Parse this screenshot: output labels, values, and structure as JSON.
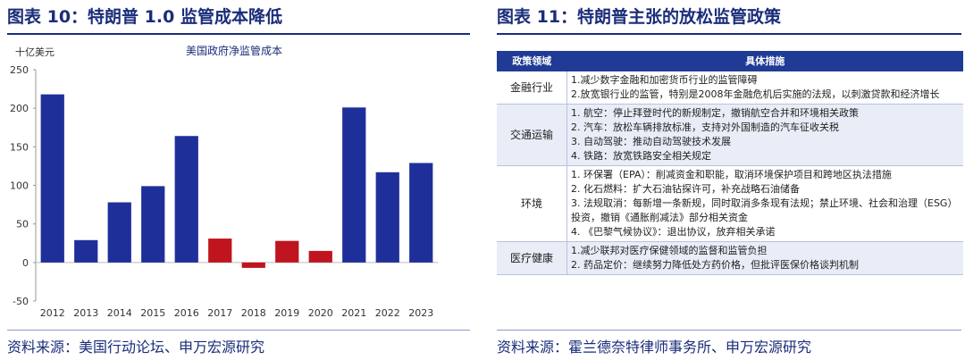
{
  "left": {
    "figure_title": "图表 10：特朗普 1.0 监管成本降低",
    "source": "资料来源：美国行动论坛、申万宏源研究"
  },
  "chart_data": {
    "type": "bar",
    "title": "美国政府净监管成本",
    "ylabel": "十亿美元",
    "xlabel": "",
    "categories": [
      "2012",
      "2013",
      "2014",
      "2015",
      "2016",
      "2017",
      "2018",
      "2019",
      "2020",
      "2021",
      "2022",
      "2023"
    ],
    "values": [
      218,
      29,
      78,
      99,
      164,
      31,
      -7,
      28,
      15,
      201,
      117,
      129
    ],
    "ylim": [
      -50,
      250
    ],
    "yticks": [
      -50,
      0,
      50,
      100,
      150,
      200,
      250
    ],
    "grid": false,
    "bar_colors": [
      "#1f2f9a",
      "#1f2f9a",
      "#1f2f9a",
      "#1f2f9a",
      "#1f2f9a",
      "#c0141e",
      "#c0141e",
      "#c0141e",
      "#c0141e",
      "#1f2f9a",
      "#1f2f9a",
      "#1f2f9a"
    ]
  },
  "right": {
    "figure_title": "图表 11：特朗普主张的放松监管政策",
    "source": "资料来源：霍兰德奈特律师事务所、申万宏源研究",
    "table": {
      "headers": [
        "政策领域",
        "具体措施"
      ],
      "rows": [
        {
          "area": "金融行业",
          "measures": [
            "1.减少数字金融和加密货币行业的监管障碍",
            "2.放宽银行业的监管，特别是2008年金融危机后实施的法规，以刺激贷款和经济增长"
          ]
        },
        {
          "area": "交通运输",
          "measures": [
            "1. 航空：停止拜登时代的新规制定，撤销航空合并和环境相关政策",
            "2. 汽车：放松车辆排放标准，支持对外国制造的汽车征收关税",
            "3. 自动驾驶：推动自动驾驶技术发展",
            "4. 铁路：放宽铁路安全相关规定"
          ]
        },
        {
          "area": "环境",
          "measures": [
            "1. 环保署（EPA）：削减资金和职能，取消环境保护项目和跨地区执法措施",
            "2. 化石燃料：扩大石油钻探许可，补充战略石油储备",
            "3. 法规取消：每新增一条新规，同时取消多条现有法规；禁止环境、社会和治理（ESG）投资，撤销《通胀削减法》部分相关资金",
            "4. 《巴黎气候协议》：退出协议，放弃相关承诺"
          ]
        },
        {
          "area": "医疗健康",
          "measures": [
            "1.减少联邦对医疗保健领域的监督和监管负担",
            "2. 药品定价：继续努力降低处方药价格，但批评医保价格谈判机制"
          ]
        }
      ]
    }
  }
}
